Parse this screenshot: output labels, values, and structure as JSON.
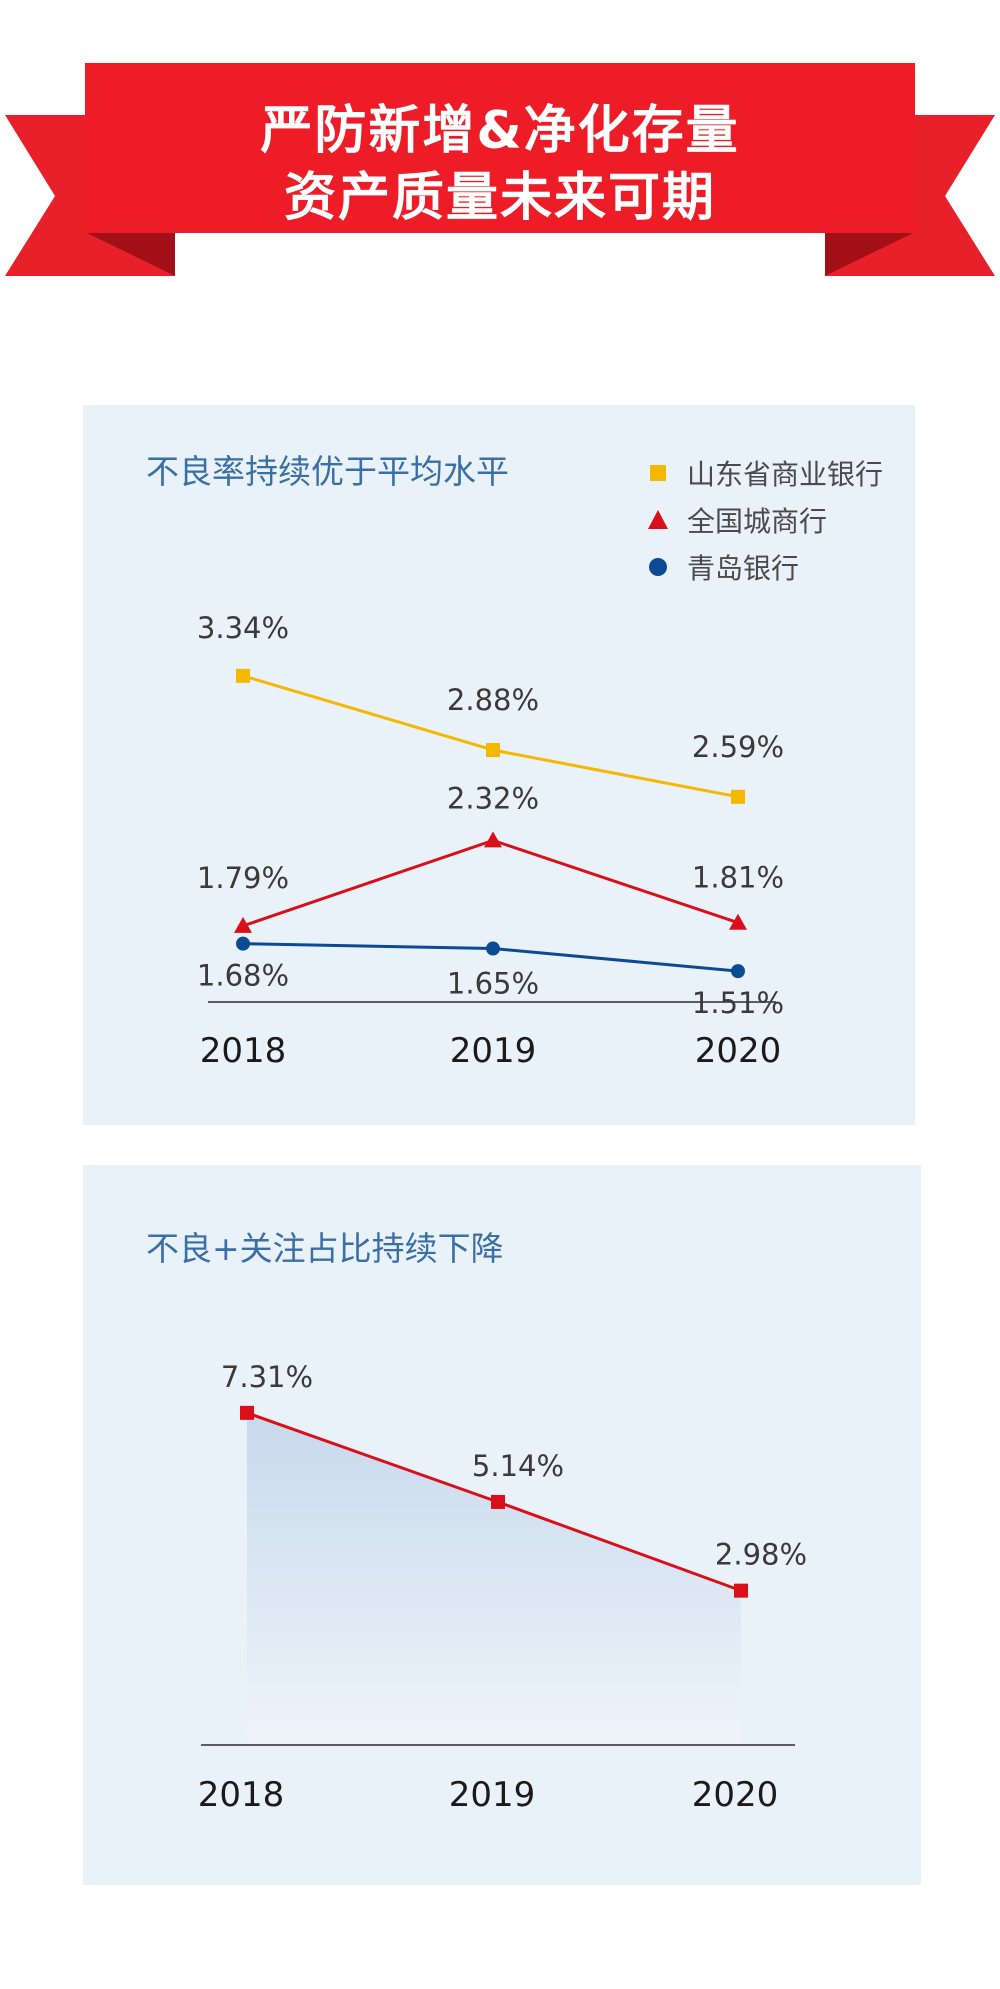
{
  "banner": {
    "line1": "严防新增&净化存量",
    "line2": "资产质量未来可期",
    "color": "#e8202a",
    "dark_color": "#b3121b"
  },
  "charts": {
    "npl": {
      "title": "不良率持续优于平均水平",
      "legend": [
        {
          "label": "山东省商业银行",
          "marker": "square",
          "color": "#f5b800"
        },
        {
          "label": "全国城商行",
          "marker": "triangle",
          "color": "#d9101a"
        },
        {
          "label": "青岛银行",
          "marker": "circle",
          "color": "#0d4a94"
        }
      ]
    },
    "watch": {
      "title": "不良+关注占比持续下降"
    }
  },
  "chart_data": [
    {
      "type": "line",
      "title": "不良率持续优于平均水平",
      "categories": [
        "2018",
        "2019",
        "2020"
      ],
      "series": [
        {
          "name": "山东省商业银行",
          "values": [
            3.34,
            2.88,
            2.59
          ],
          "labels": [
            "3.34%",
            "2.88%",
            "2.59%"
          ],
          "color": "#f5b800",
          "marker": "square"
        },
        {
          "name": "全国城商行",
          "values": [
            1.79,
            2.32,
            1.81
          ],
          "labels": [
            "1.79%",
            "2.32%",
            "1.81%"
          ],
          "color": "#d9101a",
          "marker": "triangle"
        },
        {
          "name": "青岛银行",
          "values": [
            1.68,
            1.65,
            1.51
          ],
          "labels": [
            "1.68%",
            "1.65%",
            "1.51%"
          ],
          "color": "#0d4a94",
          "marker": "circle"
        }
      ],
      "legend": "top-right",
      "grid": false
    },
    {
      "type": "area",
      "title": "不良+关注占比持续下降",
      "categories": [
        "2018",
        "2019",
        "2020"
      ],
      "series": [
        {
          "values": [
            7.31,
            5.14,
            2.98
          ],
          "labels": [
            "7.31%",
            "5.14%",
            "2.98%"
          ],
          "color": "#d9101a",
          "marker": "square"
        }
      ],
      "grid": false
    }
  ]
}
